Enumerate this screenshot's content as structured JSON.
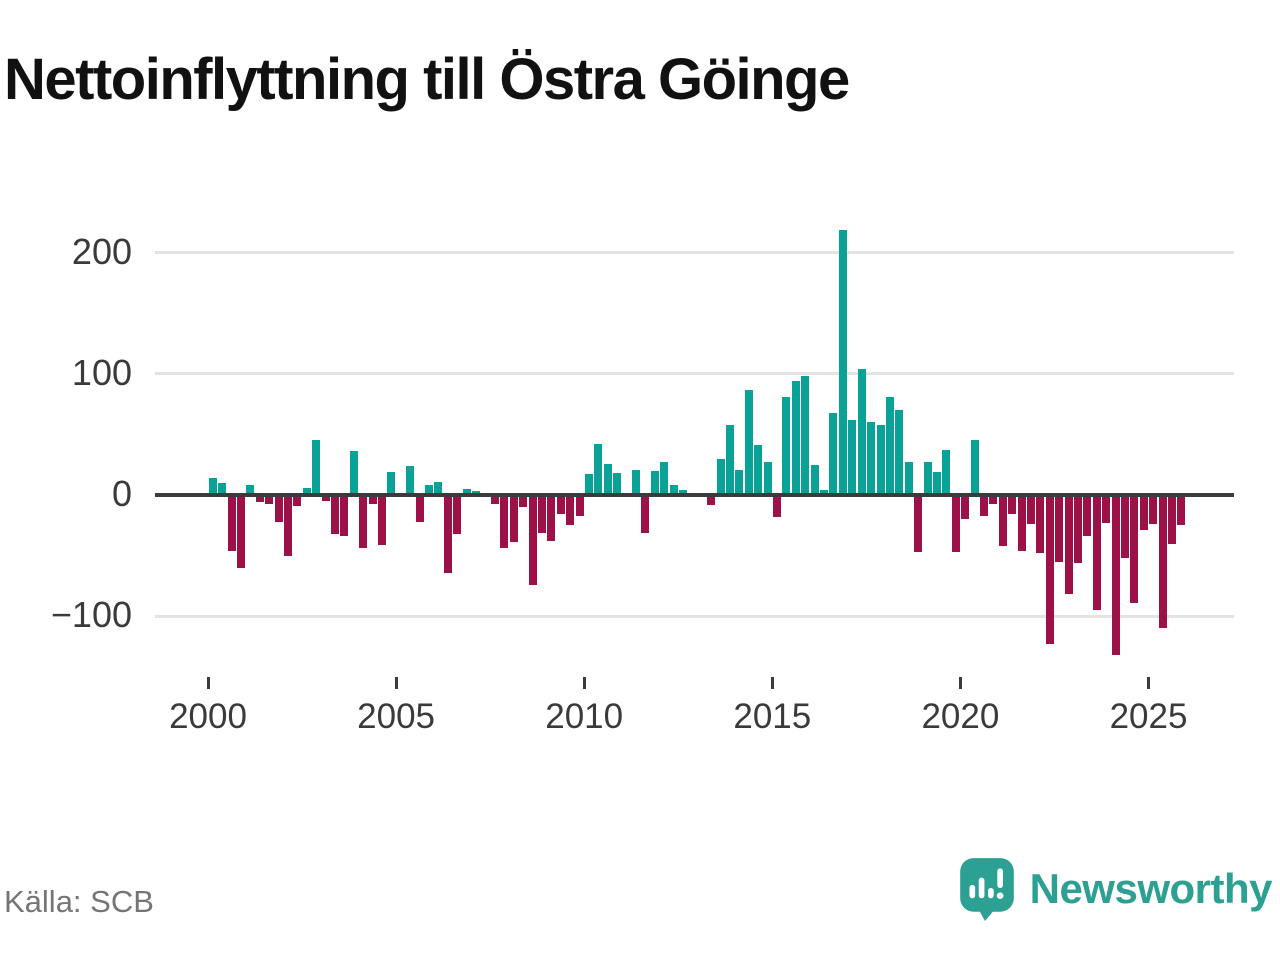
{
  "title": "Nettoinflyttning till Östra Göinge",
  "source_note": "Källa: SCB",
  "logo": {
    "text": "Newsworthy"
  },
  "colors": {
    "positive": "#0aa296",
    "negative": "#9c1148",
    "axis": "#3b3b3b",
    "grid": "#e3e3e3",
    "title": "#111111",
    "tick_label": "#3a3a3a",
    "source_text": "#757575",
    "logo": "#2ba093"
  },
  "chart_data": {
    "type": "bar",
    "title": "Nettoinflyttning till Östra Göinge",
    "xlabel": "",
    "ylabel": "",
    "unit": "personer per kvartal (nettoinflyttning)",
    "frequency": "quarterly",
    "start": "2000-Q1",
    "end": "2025-Q4",
    "grid": "horizontal",
    "ylim": [
      -145,
      235
    ],
    "y_axis": {
      "ticks": [
        200,
        100,
        0,
        -100
      ],
      "labels": [
        "200",
        "100",
        "0",
        "−100"
      ]
    },
    "x_axis": {
      "tick_years": [
        2000,
        2005,
        2010,
        2015,
        2020,
        2025
      ],
      "labels": [
        "2000",
        "2005",
        "2010",
        "2015",
        "2020",
        "2025"
      ]
    },
    "years": [
      {
        "year": 2000,
        "quarters": [
          14,
          10,
          -46,
          -60
        ]
      },
      {
        "year": 2001,
        "quarters": [
          8,
          -6,
          -7,
          -22
        ]
      },
      {
        "year": 2002,
        "quarters": [
          -50,
          -9,
          6,
          45
        ]
      },
      {
        "year": 2003,
        "quarters": [
          -5,
          -32,
          -34,
          36
        ]
      },
      {
        "year": 2004,
        "quarters": [
          -44,
          -7,
          -41,
          19
        ]
      },
      {
        "year": 2005,
        "quarters": [
          0,
          24,
          -22,
          8
        ]
      },
      {
        "year": 2006,
        "quarters": [
          11,
          -64,
          -32,
          5
        ]
      },
      {
        "year": 2007,
        "quarters": [
          3,
          2,
          -7,
          -44
        ]
      },
      {
        "year": 2008,
        "quarters": [
          -39,
          -10,
          -74,
          -31
        ]
      },
      {
        "year": 2009,
        "quarters": [
          -38,
          -16,
          -25,
          -17
        ]
      },
      {
        "year": 2010,
        "quarters": [
          17,
          42,
          26,
          18
        ]
      },
      {
        "year": 2011,
        "quarters": [
          0,
          21,
          -31,
          20
        ]
      },
      {
        "year": 2012,
        "quarters": [
          27,
          8,
          4,
          0
        ]
      },
      {
        "year": 2013,
        "quarters": [
          0,
          -8,
          30,
          58
        ]
      },
      {
        "year": 2014,
        "quarters": [
          21,
          87,
          41,
          27
        ]
      },
      {
        "year": 2015,
        "quarters": [
          -18,
          81,
          94,
          98
        ]
      },
      {
        "year": 2016,
        "quarters": [
          25,
          4,
          68,
          219
        ]
      },
      {
        "year": 2017,
        "quarters": [
          62,
          104,
          60,
          58
        ]
      },
      {
        "year": 2018,
        "quarters": [
          81,
          70,
          27,
          -47
        ]
      },
      {
        "year": 2019,
        "quarters": [
          27,
          19,
          37,
          -47
        ]
      },
      {
        "year": 2020,
        "quarters": [
          -20,
          45,
          -17,
          -7
        ]
      },
      {
        "year": 2021,
        "quarters": [
          -42,
          -16,
          -46,
          -24
        ]
      },
      {
        "year": 2022,
        "quarters": [
          -48,
          -123,
          -55,
          -82
        ]
      },
      {
        "year": 2023,
        "quarters": [
          -56,
          -34,
          -95,
          -23
        ]
      },
      {
        "year": 2024,
        "quarters": [
          -132,
          -52,
          -89,
          -29
        ]
      },
      {
        "year": 2025,
        "quarters": [
          -24,
          -110,
          -40,
          -25
        ]
      }
    ]
  }
}
